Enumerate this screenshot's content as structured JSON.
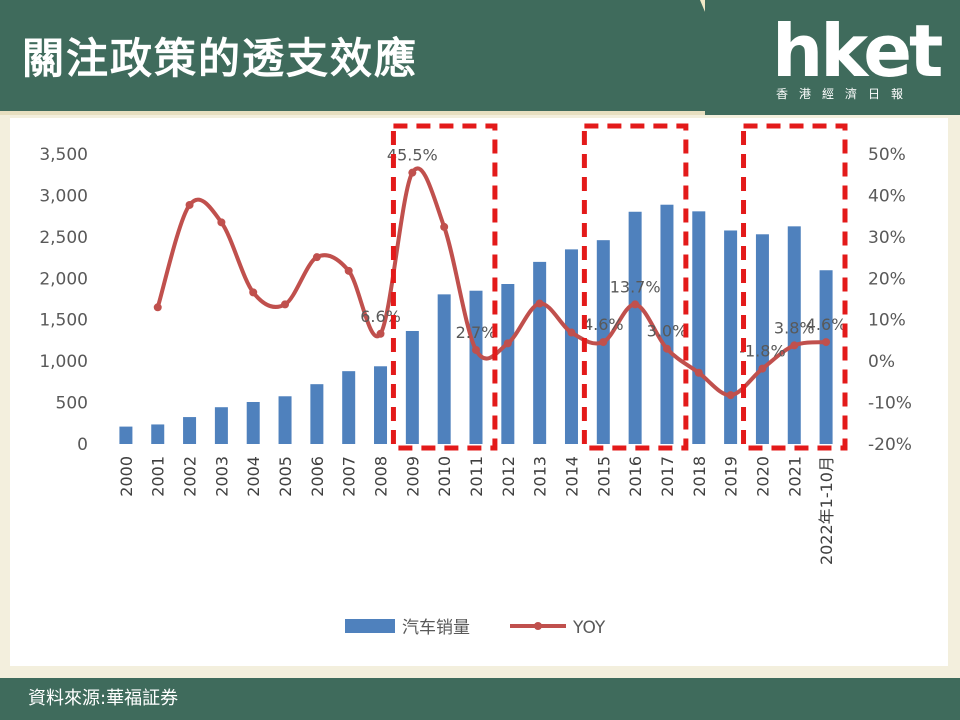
{
  "header": {
    "title": "關注政策的透支效應",
    "logo": "hket",
    "logo_sub": "香港經濟日報"
  },
  "footer": {
    "source": "資料來源:華福証券"
  },
  "colors": {
    "header_bg": "#3f6b5c",
    "bar": "#4f81bd",
    "line": "#c0504d",
    "highlight_box": "#e31a1a"
  },
  "chart_data": {
    "type": "bar",
    "categories": [
      "2000",
      "2001",
      "2002",
      "2003",
      "2004",
      "2005",
      "2006",
      "2007",
      "2008",
      "2009",
      "2010",
      "2011",
      "2012",
      "2013",
      "2014",
      "2015",
      "2016",
      "2017",
      "2018",
      "2019",
      "2020",
      "2021",
      "2022年1-10月"
    ],
    "series": [
      {
        "name": "汽车销量",
        "type": "bar",
        "axis": "left",
        "values": [
          210,
          236,
          325,
          444,
          507,
          576,
          722,
          879,
          938,
          1364,
          1806,
          1850,
          1931,
          2198,
          2349,
          2460,
          2803,
          2888,
          2808,
          2577,
          2531,
          2627,
          2097
        ]
      },
      {
        "name": "YOY",
        "type": "line",
        "axis": "right",
        "values": [
          null,
          13.0,
          37.7,
          33.5,
          16.6,
          13.7,
          25.1,
          21.8,
          6.6,
          45.5,
          32.4,
          2.7,
          4.3,
          13.9,
          6.9,
          4.6,
          13.7,
          3.0,
          -2.8,
          -8.2,
          -1.8,
          3.8,
          4.6
        ]
      }
    ],
    "left_axis": {
      "min": 0,
      "max": 3500,
      "ticks": [
        "0",
        "500",
        "1,000",
        "1,500",
        "2,000",
        "2,500",
        "3,000",
        "3,500"
      ]
    },
    "right_axis": {
      "min": -20,
      "max": 50,
      "ticks": [
        "-20%",
        "-10%",
        "0%",
        "10%",
        "20%",
        "30%",
        "40%",
        "50%"
      ]
    },
    "data_labels": [
      {
        "index": 8,
        "text": "6.6%"
      },
      {
        "index": 9,
        "text": "45.5%"
      },
      {
        "index": 11,
        "text": "2.7%"
      },
      {
        "index": 15,
        "text": "4.6%"
      },
      {
        "index": 16,
        "text": "13.7%"
      },
      {
        "index": 17,
        "text": "3.0%"
      },
      {
        "index": 20,
        "text": "-1.8%"
      },
      {
        "index": 21,
        "text": "3.8%"
      },
      {
        "index": 22,
        "text": "4.6%"
      }
    ],
    "highlight_ranges": [
      [
        9,
        11
      ],
      [
        15,
        17
      ],
      [
        20,
        22
      ]
    ],
    "grid": false,
    "legend": "bottom"
  }
}
